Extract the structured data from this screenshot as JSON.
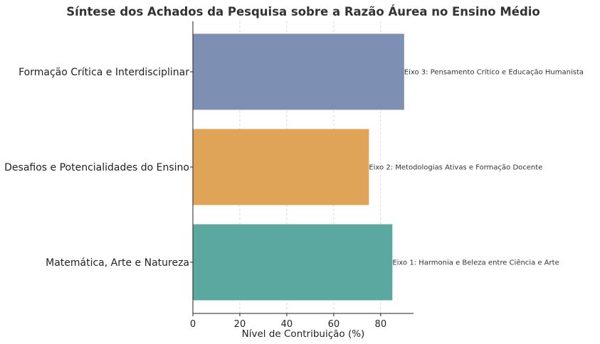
{
  "chart_data": {
    "type": "bar",
    "orientation": "horizontal",
    "title": "Síntese dos Achados da Pesquisa sobre a Razão Áurea no Ensino Médio",
    "xlabel": "Nível de Contribuição (%)",
    "ylabel": "",
    "xlim": [
      0,
      94
    ],
    "xticks": [
      0,
      20,
      40,
      60,
      80
    ],
    "grid": "x-dashed",
    "categories": [
      "Matemática, Arte e Natureza",
      "Desafios e Potencialidades do Ensino",
      "Formação Crítica e Interdisciplinar"
    ],
    "values": [
      85,
      75,
      90
    ],
    "bar_labels": [
      "Eixo 1: Harmonia e Beleza entre Ciência e Arte",
      "Eixo 2: Metodologias Ativas e Formação Docente",
      "Eixo 3: Pensamento Crítico e Educação Humanista"
    ],
    "colors": [
      "#5ba8a0",
      "#e0a458",
      "#7d8fb3"
    ]
  }
}
